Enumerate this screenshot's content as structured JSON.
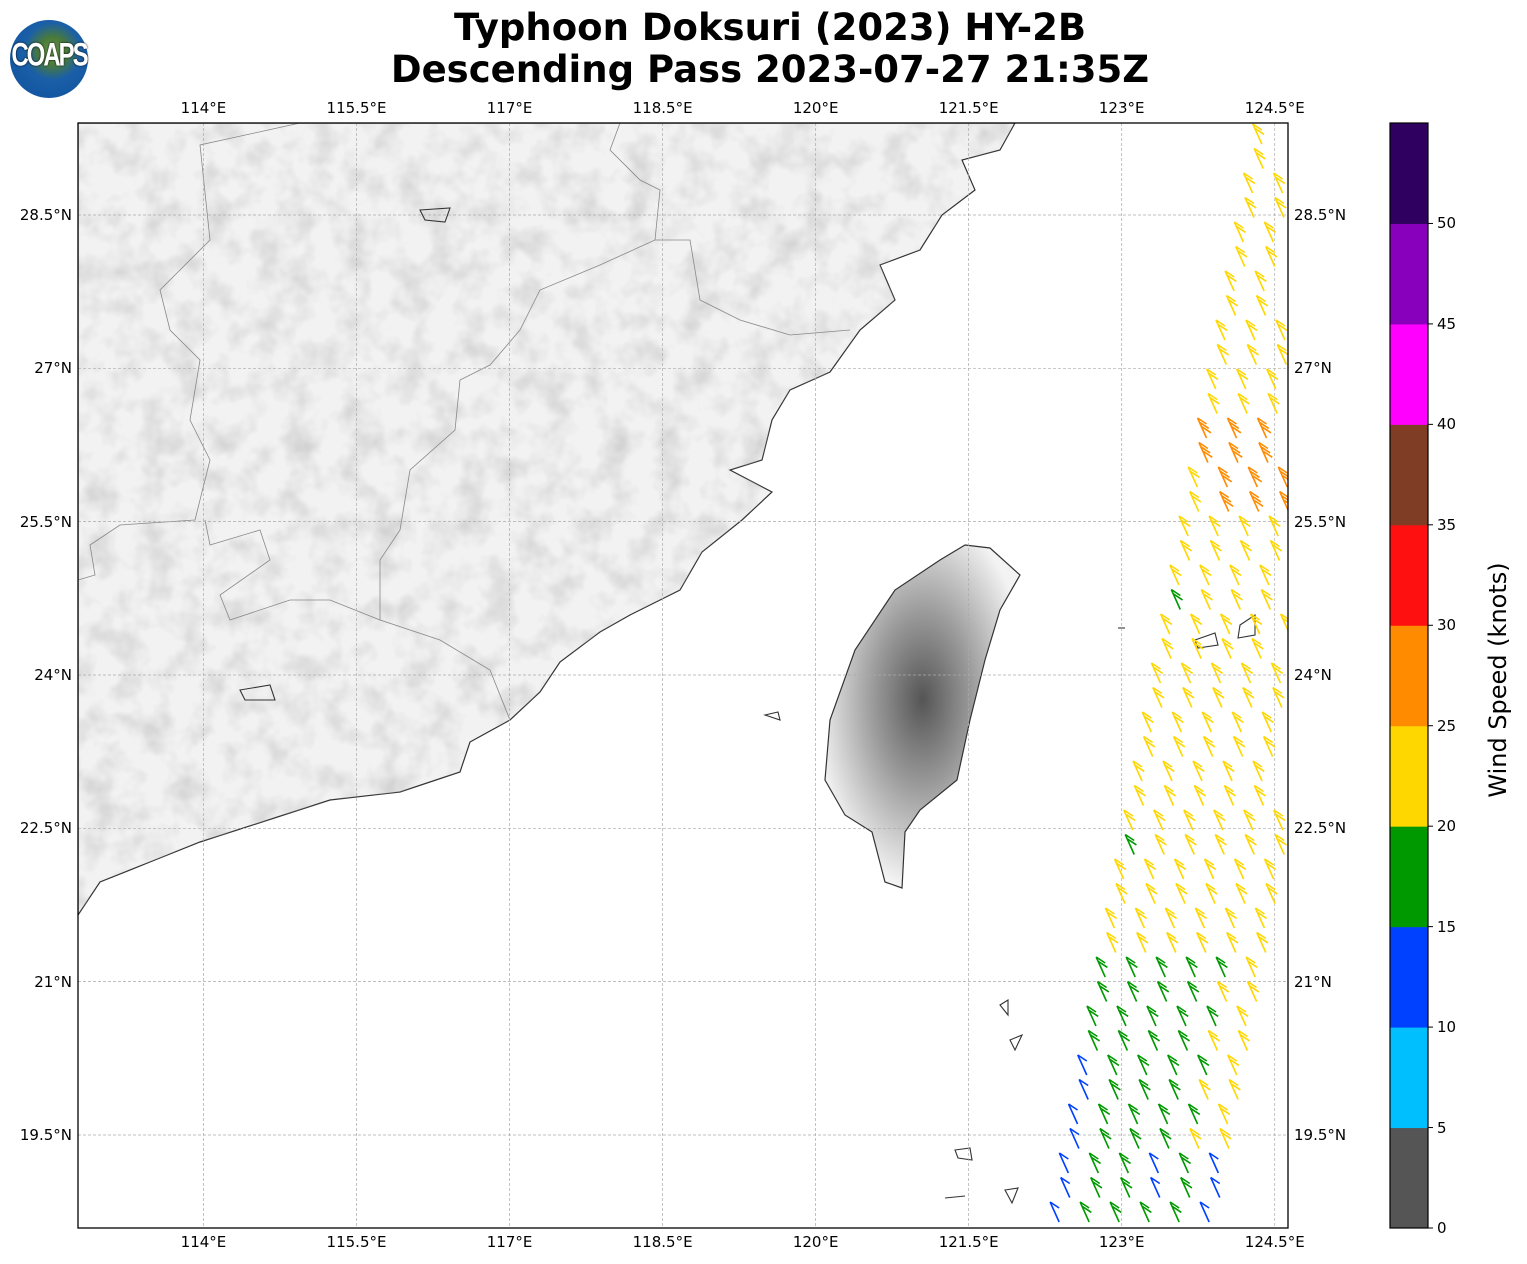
{
  "title": {
    "line1": "Typhoon Doksuri (2023) HY-2B",
    "line2": "Descending Pass 2023-07-27 21:35Z"
  },
  "logo": {
    "text": "COAPS"
  },
  "map": {
    "lon_range": [
      112.77,
      124.63
    ],
    "lat_range": [
      18.59,
      29.4
    ],
    "lon_ticks": [
      114,
      115.5,
      117,
      118.5,
      120,
      121.5,
      123,
      124.5
    ],
    "lon_labels": [
      "114°E",
      "115.5°E",
      "117°E",
      "118.5°E",
      "120°E",
      "121.5°E",
      "123°E",
      "124.5°E"
    ],
    "lat_ticks": [
      28.5,
      27,
      25.5,
      24,
      22.5,
      21,
      19.5
    ],
    "lat_labels": [
      "28.5°N",
      "27°N",
      "25.5°N",
      "24°N",
      "22.5°N",
      "21°N",
      "19.5°N"
    ]
  },
  "colorbar": {
    "label": "Wind Speed (knots)",
    "range": [
      0,
      55
    ],
    "tick_values": [
      0,
      5,
      10,
      15,
      20,
      25,
      30,
      35,
      40,
      45,
      50
    ],
    "tick_labels": [
      "0",
      "5",
      "10",
      "15",
      "20",
      "25",
      "30",
      "35",
      "40",
      "45",
      "50"
    ],
    "colors": [
      "#555555",
      "#00bfff",
      "#0040ff",
      "#009900",
      "#ffd700",
      "#ff8c00",
      "#ff1010",
      "#803d25",
      "#ff00ff",
      "#8800bb",
      "#300060"
    ]
  }
}
